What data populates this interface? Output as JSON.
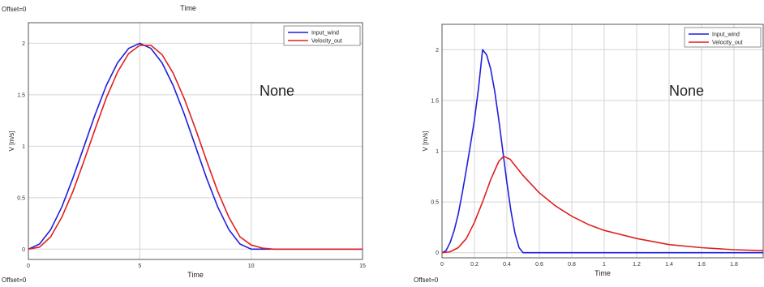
{
  "chart_data": [
    {
      "type": "line",
      "top_title": "Time",
      "offset_top": "Offset=0",
      "offset_bottom": "Offset=0",
      "xlabel": "Time",
      "ylabel": "V [m/s]",
      "annotation": "None",
      "xlim": [
        0,
        15
      ],
      "ylim": [
        -0.1,
        2.2
      ],
      "xticks": [
        0,
        5,
        10,
        15
      ],
      "yticks": [
        0,
        0.5,
        1,
        1.5,
        2
      ],
      "grid": true,
      "legend": "top-right",
      "series": [
        {
          "name": "Input_wind",
          "color": "#1f1fdd",
          "x": [
            0,
            0.5,
            1,
            1.5,
            2,
            2.5,
            3,
            3.5,
            4,
            4.5,
            5,
            5.5,
            6,
            6.5,
            7,
            7.5,
            8,
            8.5,
            9,
            9.5,
            10,
            10.5,
            11,
            12,
            13,
            14,
            15
          ],
          "y": [
            0,
            0.05,
            0.19,
            0.41,
            0.69,
            1.0,
            1.31,
            1.59,
            1.81,
            1.95,
            2.0,
            1.95,
            1.81,
            1.59,
            1.31,
            1.0,
            0.69,
            0.41,
            0.19,
            0.05,
            0,
            0,
            0,
            0,
            0,
            0,
            0
          ]
        },
        {
          "name": "Velocity_out",
          "color": "#e02020",
          "x": [
            0,
            0.5,
            1,
            1.5,
            2,
            2.5,
            3,
            3.5,
            4,
            4.5,
            5,
            5.5,
            6,
            6.5,
            7,
            7.5,
            8,
            8.5,
            9,
            9.5,
            10,
            10.5,
            11,
            12,
            13,
            14,
            15
          ],
          "y": [
            0,
            0.02,
            0.12,
            0.31,
            0.56,
            0.86,
            1.17,
            1.47,
            1.72,
            1.9,
            1.98,
            1.98,
            1.89,
            1.71,
            1.46,
            1.17,
            0.86,
            0.56,
            0.31,
            0.12,
            0.04,
            0.01,
            0,
            0,
            0,
            0,
            0
          ]
        }
      ]
    },
    {
      "type": "line",
      "offset_bottom": "Offset=0",
      "xlabel": "Time",
      "ylabel": "V [m/s]",
      "annotation": "None",
      "xlim": [
        0,
        1.98
      ],
      "ylim": [
        -0.05,
        2.25
      ],
      "xticks": [
        0,
        0.2,
        0.4,
        0.6,
        0.8,
        1,
        1.2,
        1.4,
        1.6,
        1.8
      ],
      "yticks": [
        0,
        0.5,
        1,
        1.5,
        2
      ],
      "grid": true,
      "legend": "top-right",
      "series": [
        {
          "name": "Input_wind",
          "color": "#1f1fdd",
          "x": [
            0,
            0.025,
            0.05,
            0.075,
            0.1,
            0.125,
            0.15,
            0.175,
            0.2,
            0.225,
            0.25,
            0.275,
            0.3,
            0.325,
            0.35,
            0.375,
            0.4,
            0.425,
            0.45,
            0.475,
            0.5,
            0.6,
            1.0,
            1.5,
            1.98
          ],
          "y": [
            0,
            0.02,
            0.1,
            0.22,
            0.38,
            0.59,
            0.82,
            1.06,
            1.31,
            1.62,
            2.0,
            1.95,
            1.81,
            1.59,
            1.31,
            1.0,
            0.69,
            0.41,
            0.19,
            0.05,
            0,
            0,
            0,
            0,
            0
          ]
        },
        {
          "name": "Velocity_out",
          "color": "#e02020",
          "x": [
            0,
            0.05,
            0.1,
            0.15,
            0.2,
            0.25,
            0.3,
            0.35,
            0.38,
            0.42,
            0.45,
            0.5,
            0.6,
            0.7,
            0.8,
            0.9,
            1.0,
            1.2,
            1.4,
            1.6,
            1.8,
            1.98
          ],
          "y": [
            0,
            0.01,
            0.05,
            0.14,
            0.3,
            0.5,
            0.72,
            0.9,
            0.95,
            0.92,
            0.86,
            0.76,
            0.59,
            0.46,
            0.36,
            0.28,
            0.22,
            0.14,
            0.08,
            0.05,
            0.03,
            0.02
          ]
        }
      ]
    }
  ]
}
